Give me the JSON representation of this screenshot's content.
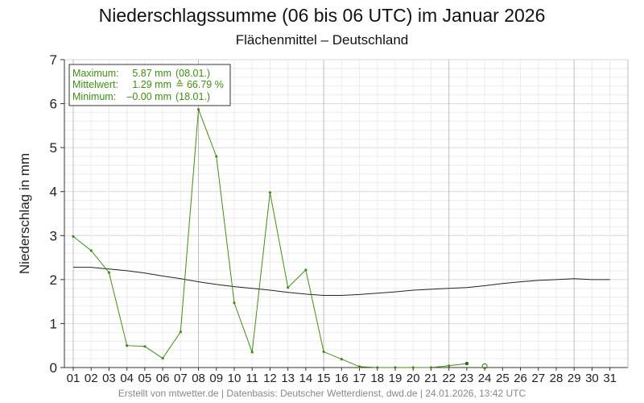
{
  "header": {
    "title": "Niederschlagssumme (06 bis 06 UTC) im Januar 2026",
    "subtitle": "Flächenmittel – Deutschland"
  },
  "stats": {
    "max_label": "Maximum:",
    "max_value": "5.87 mm",
    "max_date": "(08.01.)",
    "mean_label": "Mittelwert:",
    "mean_value": "1.29 mm",
    "mean_pct": "≙ 66.79 %",
    "min_label": "Minimum:",
    "min_value": "–0.00 mm",
    "min_date": "(18.01.)"
  },
  "footer": {
    "text": "Erstellt von mtwetter.de | Datenbasis: Deutscher Wetterdienst, dwd.de | 24.01.2026, 13:42 UTC"
  },
  "colors": {
    "daily": "#3f8f10",
    "mean": "#222222",
    "grid": "#d9d9d9",
    "grid_minor": "#ececec"
  },
  "chart_data": {
    "type": "line",
    "title": "Niederschlagssumme (06 bis 06 UTC) im Januar 2026",
    "subtitle": "Flächenmittel – Deutschland",
    "xlabel": "",
    "ylabel": "Niederschlag in mm",
    "ylim": [
      0,
      7
    ],
    "xlim": [
      1,
      31
    ],
    "grid": true,
    "x": [
      "01",
      "02",
      "03",
      "04",
      "05",
      "06",
      "07",
      "08",
      "09",
      "10",
      "11",
      "12",
      "13",
      "14",
      "15",
      "16",
      "17",
      "18",
      "19",
      "20",
      "21",
      "22",
      "23",
      "24",
      "25",
      "26",
      "27",
      "28",
      "29",
      "30",
      "31"
    ],
    "y_ticks": [
      "0",
      "1",
      "2",
      "3",
      "4",
      "5",
      "6",
      "7"
    ],
    "series": [
      {
        "values": [
          2.98,
          2.66,
          2.16,
          0.5,
          0.48,
          0.21,
          0.81,
          5.87,
          4.8,
          1.47,
          0.35,
          3.98,
          1.82,
          2.22,
          0.36,
          0.19,
          0.02,
          0.0,
          0.0,
          0.0,
          0.0,
          0.04,
          0.09,
          null,
          null,
          null,
          null,
          null,
          null,
          null,
          null
        ]
      },
      {
        "values": [
          2.28,
          2.28,
          2.24,
          2.2,
          2.15,
          2.08,
          2.02,
          1.95,
          1.89,
          1.84,
          1.8,
          1.76,
          1.71,
          1.67,
          1.64,
          1.64,
          1.66,
          1.69,
          1.72,
          1.76,
          1.78,
          1.8,
          1.82,
          1.86,
          1.91,
          1.95,
          1.98,
          2.0,
          2.02,
          2.0,
          2.0
        ]
      }
    ],
    "marker_day": "24",
    "marker_value": 0.03
  }
}
